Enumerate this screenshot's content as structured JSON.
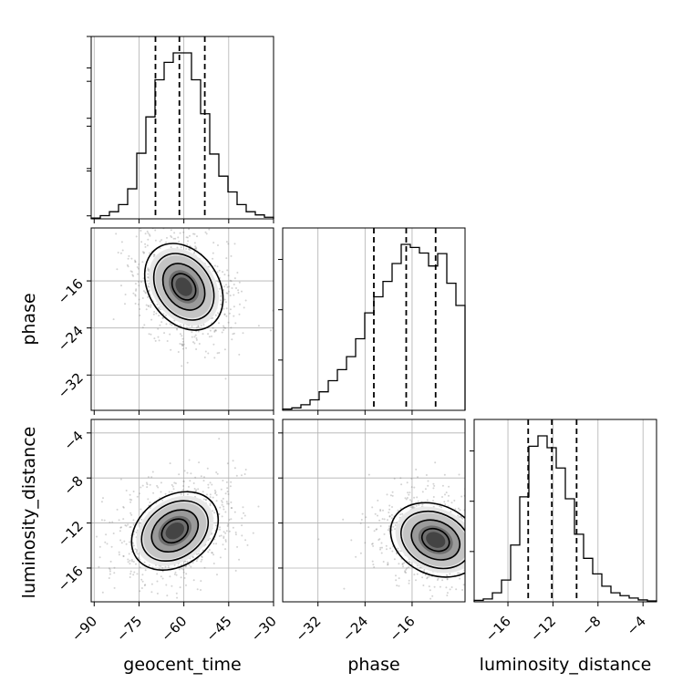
{
  "chart_data": {
    "type": "corner",
    "parameters": [
      "geocent_time",
      "phase",
      "luminosity_distance"
    ],
    "axis_labels": {
      "geocent_time": "geocent_time",
      "phase": "phase",
      "luminosity_distance": "luminosity_distance"
    },
    "ranges": {
      "geocent_time": [
        -91,
        -30
      ],
      "phase": [
        -38,
        -7
      ],
      "luminosity_distance": [
        -19,
        -2.8
      ]
    },
    "ticks": {
      "geocent_time": [
        -90,
        -75,
        -60,
        -45,
        -30
      ],
      "phase": [
        -32,
        -24,
        -16
      ],
      "luminosity_distance": [
        -16,
        -12,
        -8,
        -4
      ]
    },
    "tick_labels": {
      "geocent_time": [
        "−90",
        "−75",
        "−60",
        "−45",
        "−30"
      ],
      "phase": [
        "−32",
        "−24",
        "−16"
      ],
      "luminosity_distance": [
        "−16",
        "−12",
        "−8",
        "−4"
      ]
    },
    "quantiles": {
      "geocent_time": [
        -69.5,
        -61.5,
        -53
      ],
      "phase": [
        -22.5,
        -17,
        -12
      ],
      "luminosity_distance": [
        -14.2,
        -12.1,
        -9.9
      ]
    },
    "histograms": {
      "geocent_time": {
        "edges": [
          -91,
          -87.95,
          -84.9,
          -81.85,
          -78.8,
          -75.75,
          -72.7,
          -69.65,
          -66.6,
          -63.55,
          -60.5,
          -57.45,
          -54.4,
          -51.35,
          -48.3,
          -45.25,
          -42.2,
          -39.15,
          -36.1,
          -33.05,
          -30
        ],
        "counts": [
          1,
          4,
          9,
          18,
          38,
          83,
          129,
          176,
          198,
          210,
          210,
          176,
          133,
          82,
          54,
          34,
          18,
          9,
          5,
          2
        ]
      },
      "phase": {
        "edges": [
          -38,
          -36.45,
          -34.9,
          -33.35,
          -31.8,
          -30.25,
          -28.7,
          -27.15,
          -25.6,
          -24.05,
          -22.5,
          -20.95,
          -19.4,
          -17.85,
          -16.3,
          -14.75,
          -13.2,
          -11.65,
          -10.1,
          -8.55,
          -7
        ],
        "counts": [
          2,
          4,
          9,
          17,
          30,
          48,
          66,
          87,
          116,
          158,
          184,
          209,
          238,
          269,
          264,
          255,
          234,
          254,
          206,
          170
        ]
      },
      "luminosity_distance": {
        "edges": [
          -19,
          -18.19,
          -17.38,
          -16.57,
          -15.76,
          -14.95,
          -14.14,
          -13.33,
          -12.52,
          -11.71,
          -10.9,
          -10.09,
          -9.28,
          -8.47,
          -7.66,
          -6.85,
          -6.04,
          -5.23,
          -4.42,
          -3.61,
          -2.8
        ],
        "counts": [
          3,
          6,
          19,
          46,
          120,
          222,
          329,
          351,
          326,
          283,
          218,
          143,
          92,
          59,
          33,
          19,
          13,
          8,
          4,
          2
        ]
      }
    },
    "joint": [
      {
        "x": "geocent_time",
        "y": "phase",
        "peak": [
          -60,
          -17
        ],
        "contour_levels": 4
      },
      {
        "x": "geocent_time",
        "y": "luminosity_distance",
        "peak": [
          -63,
          -12.7
        ],
        "contour_levels": 4
      },
      {
        "x": "phase",
        "y": "luminosity_distance",
        "peak": [
          -12,
          -13.5
        ],
        "contour_levels": 4
      }
    ],
    "grid": true,
    "colors": {
      "line": "#000000",
      "grid": "#b0b0b0",
      "points": "#808080"
    }
  }
}
